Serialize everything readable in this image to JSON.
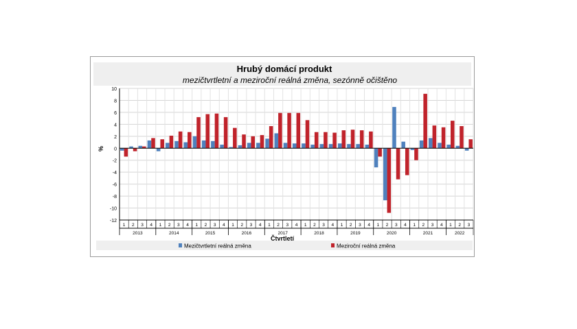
{
  "chart_data": {
    "type": "bar",
    "title": "Hrubý domácí produkt",
    "subtitle": "mezičtvrtletní a meziroční reálná změna, sezónně očištěno",
    "ylabel": "%",
    "xlabel": "Čtvrtletí",
    "ylim": [
      -12,
      10
    ],
    "yticks": [
      10,
      8,
      6,
      4,
      2,
      0,
      -2,
      -4,
      -6,
      -8,
      -10,
      -12
    ],
    "grid": true,
    "legend_position": "bottom",
    "categories": [
      "1",
      "2",
      "3",
      "4",
      "1",
      "2",
      "3",
      "4",
      "1",
      "2",
      "3",
      "4",
      "1",
      "2",
      "3",
      "4",
      "1",
      "2",
      "3",
      "4",
      "1",
      "2",
      "3",
      "4",
      "1",
      "2",
      "3",
      "4",
      "1",
      "2",
      "3",
      "4",
      "1",
      "2",
      "3",
      "4",
      "1",
      "2",
      "3"
    ],
    "year_groups": [
      {
        "label": "2013",
        "count": 4
      },
      {
        "label": "2014",
        "count": 4
      },
      {
        "label": "2015",
        "count": 4
      },
      {
        "label": "2016",
        "count": 4
      },
      {
        "label": "2017",
        "count": 4
      },
      {
        "label": "2018",
        "count": 4
      },
      {
        "label": "2019",
        "count": 4
      },
      {
        "label": "2020",
        "count": 4
      },
      {
        "label": "2021",
        "count": 4
      },
      {
        "label": "2022",
        "count": 3
      }
    ],
    "series": [
      {
        "name": "Mezičtvrtletní reálná změna",
        "color": "#4f81bd",
        "values": [
          -0.4,
          0.3,
          0.4,
          1.3,
          -0.5,
          0.9,
          1.2,
          1.0,
          2.0,
          1.3,
          1.2,
          0.6,
          0.2,
          0.5,
          0.9,
          0.9,
          1.6,
          2.5,
          0.9,
          0.8,
          0.8,
          0.6,
          0.7,
          0.7,
          0.8,
          0.7,
          0.7,
          0.6,
          -3.2,
          -8.7,
          6.9,
          1.1,
          -0.3,
          1.3,
          1.7,
          0.9,
          0.6,
          0.4,
          -0.4
        ]
      },
      {
        "name": "Meziroční reálná změna",
        "color": "#c0232b",
        "values": [
          -1.4,
          -0.5,
          0.3,
          1.7,
          1.5,
          2.1,
          2.8,
          2.7,
          5.2,
          5.7,
          5.8,
          5.2,
          3.4,
          2.3,
          2.0,
          2.2,
          3.7,
          5.9,
          5.9,
          5.9,
          4.7,
          2.7,
          2.7,
          2.6,
          3.0,
          3.1,
          3.0,
          2.8,
          -1.4,
          -10.8,
          -5.2,
          -4.5,
          -2.0,
          9.1,
          3.8,
          3.5,
          4.6,
          3.7,
          1.5
        ]
      }
    ]
  }
}
